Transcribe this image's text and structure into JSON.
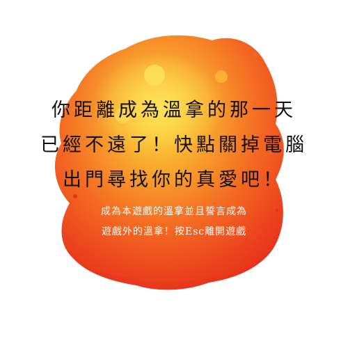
{
  "colors": {
    "splash_outer": "#e8321c",
    "splash_mid": "#f46a22",
    "splash_inner": "#f9a92e",
    "splash_core": "#fcd63a",
    "headline_text": "#111111",
    "subtext": "#ffffff"
  },
  "headline": {
    "line1": "你距離成為溫拿的那一天",
    "line2": "已經不遠了！快點關掉電腦",
    "line3": "出門尋找你的真愛吧！"
  },
  "subtext": {
    "line1": "成為本遊戲的溫拿並且誓言成為",
    "line2": "遊戲外的溫拿！按Esc離開遊戲"
  }
}
